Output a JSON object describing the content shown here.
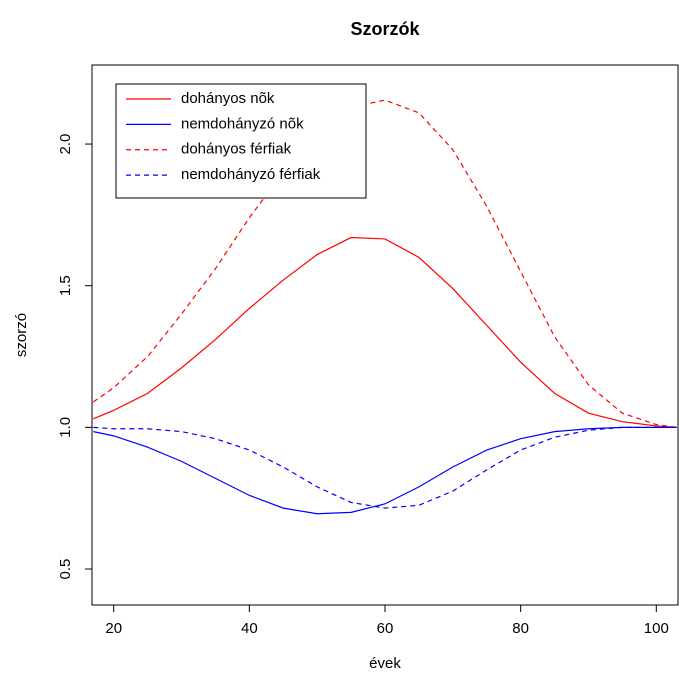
{
  "chart_data": {
    "type": "line",
    "title": "Szorzók",
    "xlabel": "évek",
    "ylabel": "szorzó",
    "x": [
      17,
      20,
      25,
      30,
      35,
      40,
      45,
      50,
      55,
      60,
      65,
      70,
      75,
      80,
      85,
      90,
      95,
      100,
      103
    ],
    "series": [
      {
        "name": "dohányos nõk",
        "color": "#ff0000",
        "linestyle": "solid",
        "values": [
          1.03,
          1.06,
          1.12,
          1.21,
          1.31,
          1.42,
          1.52,
          1.61,
          1.67,
          1.665,
          1.6,
          1.49,
          1.36,
          1.23,
          1.12,
          1.05,
          1.02,
          1.005,
          1.0
        ]
      },
      {
        "name": "nemdohányzó nõk",
        "color": "#0000ff",
        "linestyle": "solid",
        "values": [
          0.985,
          0.97,
          0.93,
          0.88,
          0.82,
          0.76,
          0.715,
          0.695,
          0.7,
          0.73,
          0.79,
          0.86,
          0.92,
          0.96,
          0.985,
          0.995,
          1.0,
          1.0,
          1.0
        ]
      },
      {
        "name": "dohányos férfiak",
        "color": "#ff0000",
        "linestyle": "dashed",
        "values": [
          1.09,
          1.14,
          1.25,
          1.4,
          1.56,
          1.74,
          1.9,
          2.04,
          2.13,
          2.155,
          2.11,
          1.98,
          1.78,
          1.55,
          1.32,
          1.15,
          1.05,
          1.01,
          1.0
        ]
      },
      {
        "name": "nemdohányzó férfiak",
        "color": "#0000ff",
        "linestyle": "dashed",
        "values": [
          1.0,
          0.995,
          0.995,
          0.985,
          0.96,
          0.92,
          0.86,
          0.79,
          0.735,
          0.715,
          0.725,
          0.775,
          0.85,
          0.92,
          0.965,
          0.99,
          1.0,
          1.0,
          1.0
        ]
      }
    ],
    "xlim": [
      16.8,
      103.2
    ],
    "xticks": [
      20,
      40,
      60,
      80,
      100
    ],
    "ylim": [
      0.373,
      2.279
    ],
    "yticks": [
      {
        "value": 0.5,
        "label": "0.5"
      },
      {
        "value": 1.0,
        "label": "1.0"
      },
      {
        "value": 1.5,
        "label": "1.5"
      },
      {
        "value": 2.0,
        "label": "2.0"
      }
    ],
    "legend": "top-left"
  }
}
